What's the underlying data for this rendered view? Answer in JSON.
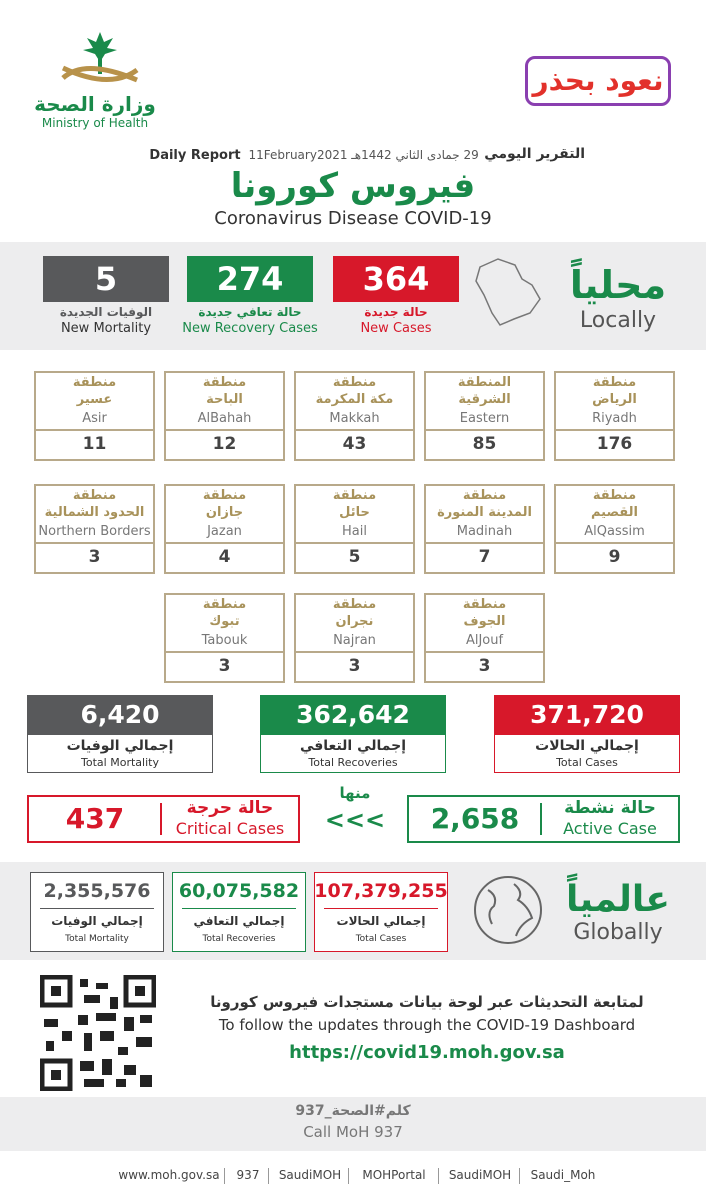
{
  "header": {
    "logo_ar": "وزارة الصحة",
    "logo_en": "Ministry of Health",
    "campaign": "نعود بحذر",
    "report_ar": "التقرير اليومي",
    "hijri_date": "29 جمادى الثاني 1442هـ",
    "gregorian_date": "11February2021",
    "report_en": "Daily Report",
    "title_ar": "فيروس كورونا",
    "title_en": "Coronavirus Disease COVID-19"
  },
  "local": {
    "label_ar": "محلياً",
    "label_en": "Locally",
    "stats": [
      {
        "value": "364",
        "label_ar": "حالة جديدة",
        "label_en": "New Cases"
      },
      {
        "value": "274",
        "label_ar": "حالة تعافي جديدة",
        "label_en": "New Recovery Cases"
      },
      {
        "value": "5",
        "label_ar": "الوفيات الجديدة",
        "label_en": "New Mortality"
      }
    ]
  },
  "regions": [
    {
      "prefix": "منطقة",
      "name_ar": "الرياض",
      "name_en": "Riyadh",
      "value": "176"
    },
    {
      "prefix": "المنطقة",
      "name_ar": "الشرقية",
      "name_en": "Eastern",
      "value": "85"
    },
    {
      "prefix": "منطقة",
      "name_ar": "مكة المكرمة",
      "name_en": "Makkah",
      "value": "43"
    },
    {
      "prefix": "منطقة",
      "name_ar": "الباحة",
      "name_en": "AlBahah",
      "value": "12"
    },
    {
      "prefix": "منطقة",
      "name_ar": "عسير",
      "name_en": "Asir",
      "value": "11"
    },
    {
      "prefix": "منطقة",
      "name_ar": "القصيم",
      "name_en": "AlQassim",
      "value": "9"
    },
    {
      "prefix": "منطقة",
      "name_ar": "المدينة المنورة",
      "name_en": "Madinah",
      "value": "7"
    },
    {
      "prefix": "منطقة",
      "name_ar": "حائل",
      "name_en": "Hail",
      "value": "5"
    },
    {
      "prefix": "منطقة",
      "name_ar": "جازان",
      "name_en": "Jazan",
      "value": "4"
    },
    {
      "prefix": "منطقة",
      "name_ar": "الحدود الشمالية",
      "name_en": "Northern Borders",
      "value": "3"
    },
    {
      "prefix": "منطقة",
      "name_ar": "الجوف",
      "name_en": "AlJouf",
      "value": "3"
    },
    {
      "prefix": "منطقة",
      "name_ar": "نجران",
      "name_en": "Najran",
      "value": "3"
    },
    {
      "prefix": "منطقة",
      "name_ar": "تبوك",
      "name_en": "Tabouk",
      "value": "3"
    }
  ],
  "totals": [
    {
      "value": "371,720",
      "label_ar": "إجمالي الحالات",
      "label_en": "Total Cases"
    },
    {
      "value": "362,642",
      "label_ar": "إجمالي التعافي",
      "label_en": "Total Recoveries"
    },
    {
      "value": "6,420",
      "label_ar": "إجمالي الوفيات",
      "label_en": "Total Mortality"
    }
  ],
  "active": {
    "label_ar": "حالة نشطة",
    "label_en": "Active Case",
    "value": "2,658",
    "of_which": "منها",
    "arrows": "<<<",
    "critical_ar": "حالة حرجة",
    "critical_en": "Critical Cases",
    "critical_value": "437"
  },
  "global": {
    "label_ar": "عالمياً",
    "label_en": "Globally",
    "stats": [
      {
        "value": "107,379,255",
        "label_ar": "إجمالي الحالات",
        "label_en": "Total Cases"
      },
      {
        "value": "60,075,582",
        "label_ar": "إجمالي التعافي",
        "label_en": "Total Recoveries"
      },
      {
        "value": "2,355,576",
        "label_ar": "إجمالي الوفيات",
        "label_en": "Total Mortality"
      }
    ]
  },
  "dashboard": {
    "line_ar": "لمتابعة التحديثات عبر لوحة بيانات مستجدات فيروس كورونا",
    "line_en": "To follow the updates through the COVID-19 Dashboard",
    "url": "https://covid19.moh.gov.sa"
  },
  "call": {
    "line_ar": "كلم#الصحة_937",
    "line_en": "Call MoH 937"
  },
  "footer": [
    "www.moh.gov.sa",
    "937",
    "SaudiMOH",
    "MOHPortal",
    "SaudiMOH",
    "Saudi_Moh"
  ]
}
